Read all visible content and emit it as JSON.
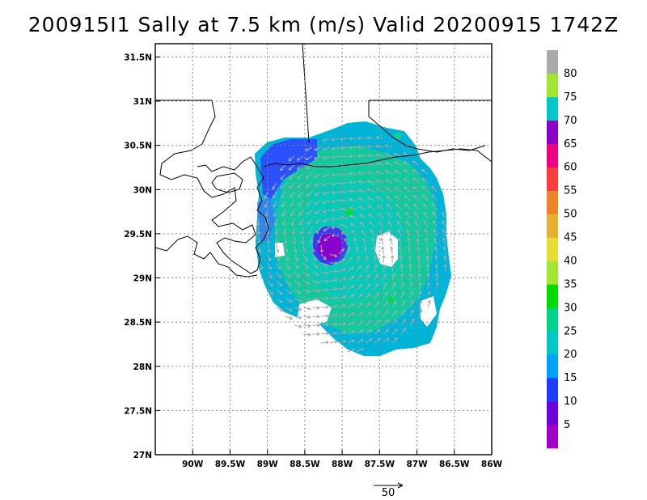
{
  "title": "200915I1 Sally at 7.5 km (m/s) Valid 20200915 1742Z",
  "map": {
    "lon_range": [
      -90.5,
      -86
    ],
    "lat_range": [
      27,
      31.65
    ],
    "lon_ticks": [
      {
        "value": -90,
        "label": "90W"
      },
      {
        "value": -89.5,
        "label": "89.5W"
      },
      {
        "value": -89,
        "label": "89W"
      },
      {
        "value": -88.5,
        "label": "88.5W"
      },
      {
        "value": -88,
        "label": "88W"
      },
      {
        "value": -87.5,
        "label": "87.5W"
      },
      {
        "value": -87,
        "label": "87W"
      },
      {
        "value": -86.5,
        "label": "86.5W"
      },
      {
        "value": -86,
        "label": "86W"
      }
    ],
    "lat_ticks": [
      {
        "value": 31.5,
        "label": "31.5N"
      },
      {
        "value": 31,
        "label": "31N"
      },
      {
        "value": 30.5,
        "label": "30.5N"
      },
      {
        "value": 30,
        "label": "30N"
      },
      {
        "value": 29.5,
        "label": "29.5N"
      },
      {
        "value": 29,
        "label": "29N"
      },
      {
        "value": 28.5,
        "label": "28.5N"
      },
      {
        "value": 28,
        "label": "28N"
      },
      {
        "value": 27.5,
        "label": "27.5N"
      },
      {
        "value": 27,
        "label": "27N"
      }
    ],
    "storm_center": {
      "lon": -88.1,
      "lat": 29.35
    },
    "vector_color": "#a8a8a8",
    "coast_color": "#000000"
  },
  "colorbar": {
    "labels": [
      "5",
      "10",
      "15",
      "20",
      "25",
      "30",
      "35",
      "40",
      "45",
      "50",
      "55",
      "60",
      "65",
      "70",
      "75",
      "80"
    ],
    "colors": [
      "#a000c8",
      "#6e00dc",
      "#1e3cff",
      "#00a0ff",
      "#00c8c8",
      "#00d28c",
      "#00dc00",
      "#a0e632",
      "#e6dc32",
      "#e6af2d",
      "#f08228",
      "#fa3c3c",
      "#f00082",
      "#8c00c8",
      "#00c8c8",
      "#a0e632",
      "#aaaaaa"
    ]
  },
  "reference_vector": {
    "label": "50"
  }
}
